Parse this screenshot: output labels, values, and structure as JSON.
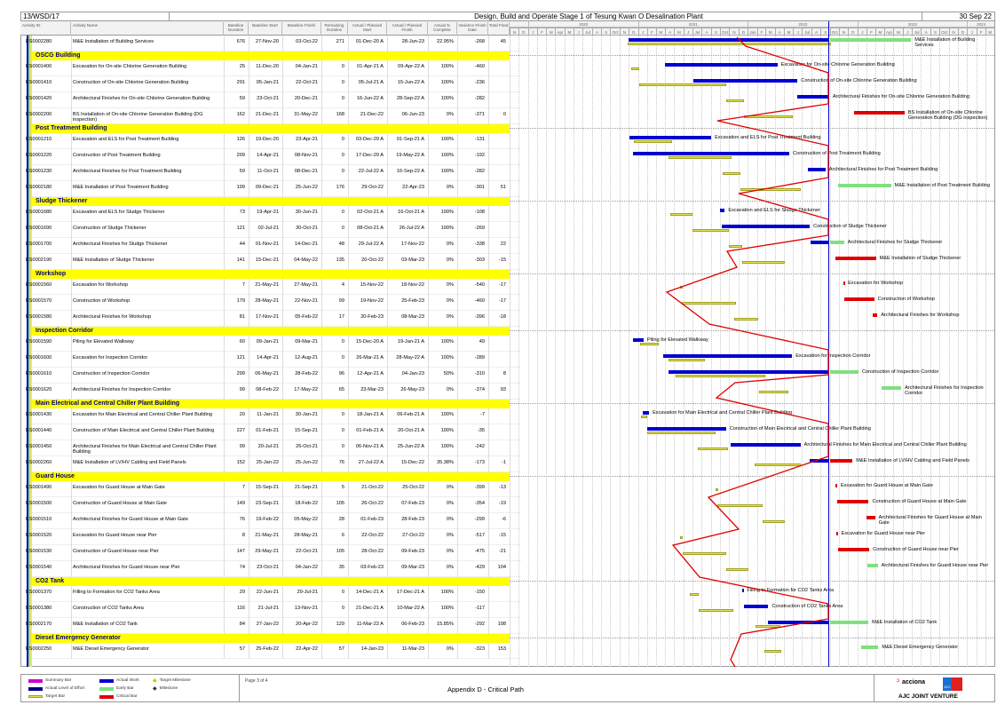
{
  "header": {
    "project_code": "13/WSD/17",
    "title": "Design, Build and Operate Stage 1 of Tesung Kwan O Desalination Plant",
    "data_date": "30 Sep 22"
  },
  "columns": {
    "id": "Activity ID",
    "name": "Activity Name",
    "bl_dur": "Baseline Duration",
    "bl_start": "Baseline Start",
    "bl_finish": "Baseline Finish",
    "rem_dur": "Remaining Duration",
    "start": "Actual / Planned Start",
    "finish": "Actual / Planned Finish",
    "pct": "Actual % Complete",
    "var": "Variance Finish Date",
    "tf": "Total Float"
  },
  "timeline": {
    "years": [
      {
        "label": "2020"
      },
      {
        "label": "2021"
      },
      {
        "label": "2022"
      },
      {
        "label": "2023"
      },
      {
        "label": "2024"
      }
    ],
    "months": [
      "N",
      "D",
      "J",
      "F",
      "M",
      "Apr",
      "M",
      "J",
      "Jul",
      "A",
      "S",
      "Oct",
      "N",
      "D",
      "J",
      "F",
      "M",
      "A",
      "M",
      "J",
      "Jul",
      "A",
      "S",
      "Oct",
      "N",
      "D",
      "Jan",
      "F",
      "M",
      "A",
      "M",
      "J",
      "Jul",
      "A",
      "S",
      "Oct",
      "N",
      "D",
      "J",
      "F",
      "M",
      "Apr",
      "M",
      "J",
      "Jul",
      "A",
      "S",
      "Oct",
      "N",
      "D",
      "J",
      "F",
      "M"
    ]
  },
  "colors": {
    "actual_work": "#0000d0",
    "early_bar": "#7fe07f",
    "critical_bar": "#e00000",
    "target_bar": "#e4e45a",
    "group_band": "#ffff00",
    "progress_line": "#e00000",
    "data_date_line": "#0000d0"
  },
  "rows": [
    {
      "id": "ES0002280",
      "name": "M&E Installation of Building Services",
      "bl_dur": "676",
      "bl_start": "27-Nov-20",
      "bl_finish": "03-Oct-22",
      "rem_dur": "271",
      "start": "01-Dec-20 A",
      "finish": "28-Jun-23",
      "pct": "22.95%",
      "var": "-268",
      "tf": "45"
    },
    {
      "group": "OSCG Building"
    },
    {
      "id": "ES0001400",
      "name": "Excavation for On-site Chlorine Generation Building",
      "bl_dur": "25",
      "bl_start": "11-Dec-20",
      "bl_finish": "04-Jan-21",
      "rem_dur": "0",
      "start": "01-Apr-21 A",
      "finish": "09-Apr-22 A",
      "pct": "100%",
      "var": "-460",
      "tf": ""
    },
    {
      "id": "ES0001410",
      "name": "Construction of On-site Chlorine Generation Building",
      "bl_dur": "291",
      "bl_start": "05-Jan-21",
      "bl_finish": "22-Oct-21",
      "rem_dur": "0",
      "start": "05-Jul-21 A",
      "finish": "15-Jun-22 A",
      "pct": "100%",
      "var": "-236",
      "tf": ""
    },
    {
      "id": "ES0001420",
      "name": "Architectural Finishes for On-site Chlorine Generation Building",
      "bl_dur": "59",
      "bl_start": "23-Oct-21",
      "bl_finish": "20-Dec-21",
      "rem_dur": "0",
      "start": "16-Jun-22 A",
      "finish": "28-Sep-22 A",
      "pct": "100%",
      "var": "-282",
      "tf": ""
    },
    {
      "id": "ES0002200",
      "name": "BS Installation of On-site Chlorine Generation Building (DG inspection)",
      "bl_dur": "162",
      "bl_start": "21-Dec-21",
      "bl_finish": "31-May-22",
      "rem_dur": "168",
      "start": "21-Dec-22",
      "finish": "06-Jun-23",
      "pct": "0%",
      "var": "-371",
      "tf": "0"
    },
    {
      "group": "Post Treatment Building"
    },
    {
      "id": "ES0001210",
      "name": "Excavation and ELS for Post Treatment Building",
      "bl_dur": "126",
      "bl_start": "19-Dec-20",
      "bl_finish": "23-Apr-21",
      "rem_dur": "0",
      "start": "03-Dec-20 A",
      "finish": "01-Sep-21 A",
      "pct": "100%",
      "var": "-131",
      "tf": ""
    },
    {
      "id": "ES0001220",
      "name": "Construction of Post Treatment Building",
      "bl_dur": "209",
      "bl_start": "14-Apr-21",
      "bl_finish": "08-Nov-21",
      "rem_dur": "0",
      "start": "17-Dec-20 A",
      "finish": "19-May-22 A",
      "pct": "100%",
      "var": "-192",
      "tf": ""
    },
    {
      "id": "ES0001230",
      "name": "Architectural Finishes for Post Treatment Building",
      "bl_dur": "59",
      "bl_start": "11-Oct-21",
      "bl_finish": "08-Dec-21",
      "rem_dur": "0",
      "start": "22-Jul-22 A",
      "finish": "16-Sep-22 A",
      "pct": "100%",
      "var": "-282",
      "tf": ""
    },
    {
      "id": "ES0002180",
      "name": "M&E Installation of Post Treatment Building",
      "bl_dur": "199",
      "bl_start": "09-Dec-21",
      "bl_finish": "25-Jun-22",
      "rem_dur": "176",
      "start": "29-Oct-22",
      "finish": "22-Apr-23",
      "pct": "0%",
      "var": "-301",
      "tf": "51"
    },
    {
      "group": "Sludge Thickener"
    },
    {
      "id": "ES0001680",
      "name": "Excavation and ELS for Sludge Thickener",
      "bl_dur": "73",
      "bl_start": "19-Apr-21",
      "bl_finish": "30-Jun-21",
      "rem_dur": "0",
      "start": "02-Oct-21 A",
      "finish": "16-Oct-21 A",
      "pct": "100%",
      "var": "-108",
      "tf": ""
    },
    {
      "id": "ES0001690",
      "name": "Construction of Sludge Thickener",
      "bl_dur": "121",
      "bl_start": "02-Jul-21",
      "bl_finish": "30-Oct-21",
      "rem_dur": "0",
      "start": "08-Oct-21 A",
      "finish": "26-Jul-22 A",
      "pct": "100%",
      "var": "-269",
      "tf": ""
    },
    {
      "id": "ES0001700",
      "name": "Architectural Finishes for Sludge Thickener",
      "bl_dur": "44",
      "bl_start": "01-Nov-21",
      "bl_finish": "14-Dec-21",
      "rem_dur": "48",
      "start": "29-Jul-22 A",
      "finish": "17-Nov-22",
      "pct": "0%",
      "var": "-338",
      "tf": "22"
    },
    {
      "id": "ES0002190",
      "name": "M&E Installation of Sludge Thickener",
      "bl_dur": "141",
      "bl_start": "15-Dec-21",
      "bl_finish": "04-May-22",
      "rem_dur": "135",
      "start": "20-Oct-22",
      "finish": "03-Mar-23",
      "pct": "0%",
      "var": "-303",
      "tf": "-15"
    },
    {
      "group": "Workshop"
    },
    {
      "id": "ES0001560",
      "name": "Excavation for Workshop",
      "bl_dur": "7",
      "bl_start": "21-May-21",
      "bl_finish": "27-May-21",
      "rem_dur": "4",
      "start": "15-Nov-22",
      "finish": "18-Nov-22",
      "pct": "0%",
      "var": "-540",
      "tf": "-17"
    },
    {
      "id": "ES0001570",
      "name": "Construction of Workshop",
      "bl_dur": "179",
      "bl_start": "28-May-21",
      "bl_finish": "22-Nov-21",
      "rem_dur": "99",
      "start": "19-Nov-22",
      "finish": "25-Feb-23",
      "pct": "0%",
      "var": "-460",
      "tf": "-17"
    },
    {
      "id": "ES0001580",
      "name": "Architectural Finishes for Workshop",
      "bl_dur": "81",
      "bl_start": "17-Nov-21",
      "bl_finish": "05-Feb-22",
      "rem_dur": "17",
      "start": "20-Feb-23",
      "finish": "08-Mar-23",
      "pct": "0%",
      "var": "-396",
      "tf": "-18"
    },
    {
      "group": "Inspection Corridor"
    },
    {
      "id": "ES0001590",
      "name": "Piling for Elevated Walkway",
      "bl_dur": "60",
      "bl_start": "09-Jan-21",
      "bl_finish": "09-Mar-21",
      "rem_dur": "0",
      "start": "15-Dec-20 A",
      "finish": "19-Jan-21 A",
      "pct": "100%",
      "var": "49",
      "tf": ""
    },
    {
      "id": "ES0001600",
      "name": "Excavation for Inspection Corridor",
      "bl_dur": "121",
      "bl_start": "14-Apr-21",
      "bl_finish": "12-Aug-21",
      "rem_dur": "0",
      "start": "26-Mar-21 A",
      "finish": "28-May-22 A",
      "pct": "100%",
      "var": "-289",
      "tf": ""
    },
    {
      "id": "ES0001610",
      "name": "Construction of Inspection Corridor",
      "bl_dur": "299",
      "bl_start": "06-May-21",
      "bl_finish": "28-Feb-22",
      "rem_dur": "96",
      "start": "12-Apr-21 A",
      "finish": "04-Jan-23",
      "pct": "50%",
      "var": "-310",
      "tf": "8"
    },
    {
      "id": "ES0001620",
      "name": "Architectural Finishes for Inspection Corridor",
      "bl_dur": "99",
      "bl_start": "08-Feb-22",
      "bl_finish": "17-May-22",
      "rem_dur": "65",
      "start": "23-Mar-23",
      "finish": "26-May-23",
      "pct": "0%",
      "var": "-374",
      "tf": "93"
    },
    {
      "group": "Main Electrical and Central Chiller Plant Building"
    },
    {
      "id": "ES0001430",
      "name": "Excavation for Main Electrical and Central Chiller Plant Building",
      "bl_dur": "20",
      "bl_start": "11-Jan-21",
      "bl_finish": "30-Jan-21",
      "rem_dur": "0",
      "start": "18-Jan-21 A",
      "finish": "06-Feb-21 A",
      "pct": "100%",
      "var": "-7",
      "tf": ""
    },
    {
      "id": "ES0001440",
      "name": "Construction of Main Electrical and Central Chiller Plant Building",
      "bl_dur": "227",
      "bl_start": "01-Feb-21",
      "bl_finish": "15-Sep-21",
      "rem_dur": "0",
      "start": "01-Feb-21 A",
      "finish": "20-Oct-21 A",
      "pct": "100%",
      "var": "-35",
      "tf": ""
    },
    {
      "id": "ES0001450",
      "name": "Architectural Finishes for Main Electrical and Central Chiller Plant Building",
      "bl_dur": "99",
      "bl_start": "20-Jul-21",
      "bl_finish": "26-Oct-21",
      "rem_dur": "0",
      "start": "06-Nov-21 A",
      "finish": "25-Jun-22 A",
      "pct": "100%",
      "var": "-242",
      "tf": ""
    },
    {
      "id": "ES0002260",
      "name": "M&E Installation of LV/HV Cabling and Field Panels",
      "bl_dur": "152",
      "bl_start": "25-Jan-22",
      "bl_finish": "25-Jun-22",
      "rem_dur": "76",
      "start": "27-Jul-22 A",
      "finish": "15-Dec-22",
      "pct": "35.38%",
      "var": "-173",
      "tf": "-1"
    },
    {
      "group": "Guard House"
    },
    {
      "id": "ES0001490",
      "name": "Excavation for Guard House at Main Gate",
      "bl_dur": "7",
      "bl_start": "15-Sep-21",
      "bl_finish": "21-Sep-21",
      "rem_dur": "5",
      "start": "21-Oct-22",
      "finish": "25-Oct-22",
      "pct": "0%",
      "var": "-399",
      "tf": "-13"
    },
    {
      "id": "ES0001500",
      "name": "Construction of Guard House at Main Gate",
      "bl_dur": "149",
      "bl_start": "23-Sep-21",
      "bl_finish": "18-Feb-22",
      "rem_dur": "105",
      "start": "26-Oct-22",
      "finish": "07-Feb-23",
      "pct": "0%",
      "var": "-354",
      "tf": "-19"
    },
    {
      "id": "ES0001510",
      "name": "Architectural Finishes for Guard House at Main Gate",
      "bl_dur": "76",
      "bl_start": "19-Feb-22",
      "bl_finish": "05-May-22",
      "rem_dur": "28",
      "start": "01-Feb-23",
      "finish": "28-Feb-23",
      "pct": "0%",
      "var": "-299",
      "tf": "-6"
    },
    {
      "id": "ES0001520",
      "name": "Excavation for Guard House near Pier",
      "bl_dur": "8",
      "bl_start": "21-May-21",
      "bl_finish": "28-May-21",
      "rem_dur": "6",
      "start": "22-Oct-22",
      "finish": "27-Oct-22",
      "pct": "0%",
      "var": "-517",
      "tf": "-15"
    },
    {
      "id": "ES0001530",
      "name": "Construction of Guard House near Pier",
      "bl_dur": "147",
      "bl_start": "29-May-21",
      "bl_finish": "22-Oct-21",
      "rem_dur": "105",
      "start": "28-Oct-22",
      "finish": "09-Feb-23",
      "pct": "0%",
      "var": "-475",
      "tf": "-21"
    },
    {
      "id": "ES0001540",
      "name": "Architectural Finishes for Guard House near Pier",
      "bl_dur": "74",
      "bl_start": "23-Oct-21",
      "bl_finish": "04-Jan-22",
      "rem_dur": "35",
      "start": "03-Feb-23",
      "finish": "09-Mar-23",
      "pct": "0%",
      "var": "-429",
      "tf": "104"
    },
    {
      "group": "CO2 Tank"
    },
    {
      "id": "ES0001370",
      "name": "Filling to Formation for CO2 Tanks Area",
      "bl_dur": "29",
      "bl_start": "22-Jun-21",
      "bl_finish": "20-Jul-21",
      "rem_dur": "0",
      "start": "14-Dec-21 A",
      "finish": "17-Dec-21 A",
      "pct": "100%",
      "var": "-150",
      "tf": ""
    },
    {
      "id": "ES0001380",
      "name": "Construction of CO2 Tanks Area",
      "bl_dur": "116",
      "bl_start": "21-Jul-21",
      "bl_finish": "13-Nov-21",
      "rem_dur": "0",
      "start": "21-Dec-21 A",
      "finish": "10-Mar-22 A",
      "pct": "100%",
      "var": "-117",
      "tf": ""
    },
    {
      "id": "ES0002170",
      "name": "M&E Installation of CO2 Tank",
      "bl_dur": "84",
      "bl_start": "27-Jan-22",
      "bl_finish": "20-Apr-22",
      "rem_dur": "129",
      "start": "11-Mar-22 A",
      "finish": "06-Feb-23",
      "pct": "15.85%",
      "var": "-292",
      "tf": "108"
    },
    {
      "group": "Diesel Emergency Generator"
    },
    {
      "id": "ES0002250",
      "name": "M&E Diesel Emergency Generator",
      "bl_dur": "57",
      "bl_start": "25-Feb-22",
      "bl_finish": "22-Apr-22",
      "rem_dur": "57",
      "start": "14-Jan-23",
      "finish": "11-Mar-23",
      "pct": "0%",
      "var": "-323",
      "tf": "153"
    }
  ],
  "legend": {
    "summary_bar": "Summary Bar",
    "actual_loe": "Actual Level of Effort",
    "target_bar": "Target Bar",
    "actual_work": "Actual Work",
    "early_bar": "Early Bar",
    "critical_bar": "Critical Bar",
    "target_milestone": "Target Milestone",
    "milestone": "Milestone"
  },
  "footer": {
    "page": "Page 3 of 4",
    "report_title": "Appendix D - Critical Path",
    "logo_brand": "acciona",
    "logo_jec": "JEC",
    "joint_venture": "AJC JOINT VENTURE"
  }
}
